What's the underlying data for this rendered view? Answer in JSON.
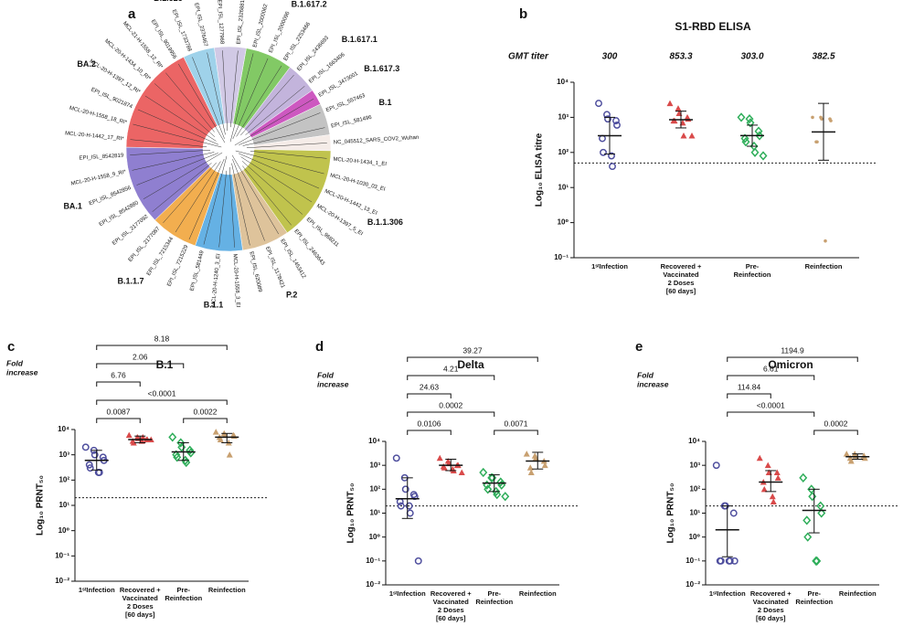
{
  "chart_data": [
    {
      "type": "tree",
      "panel": "a",
      "clades": [
        {
          "name": "B.1.617.2",
          "color": "#6cc04a",
          "leaves": [
            "EPI_ISL_2000062",
            "EPI_ISL_2000096",
            "EPI_ISL_2253466"
          ]
        },
        {
          "name": "B.1.617.1",
          "color": "#b9a7d6",
          "leaves": [
            "EPI_ISL_2436693",
            "EPI_ISL_1663406"
          ]
        },
        {
          "name": "B.1.617.3",
          "color": "#c43bb5",
          "leaves": [
            "EPI_ISL_3473001"
          ]
        },
        {
          "name": "B.1",
          "color": "#b8b8b8",
          "leaves": [
            "EPI_ISL_557463",
            "EPI_ISL_581496"
          ]
        },
        {
          "color": "#f3e9e4",
          "label_color": "#e8603c",
          "leaves": [
            "NC_045512_SARS_COV2_Wuhan"
          ]
        },
        {
          "name": "B.1.1.306",
          "color": "#b5b82e",
          "label_color": "#2a2f7a",
          "leaves": [
            "MCL-20-H-1434_1_EI",
            "MCL-20-H-1030_03_EI",
            "MCL-20-H-1442_13_EI",
            "MCL-20-H-1397_5_EI",
            "EPI_ISL_968211",
            "EPI_ISL_2463643"
          ]
        },
        {
          "name": "P.2",
          "color": "#d8b98a",
          "leaves": [
            "EPI_ISL_1453412",
            "EPI_ISL_1178421",
            "EPI_ISL_620089"
          ]
        },
        {
          "name": "B.1.1",
          "color": "#4aa3df",
          "leaves": [
            "MCL-20-H-1558_3_EI",
            "MCL-20-H-1240_3_EI",
            "EPI_ISL_581449"
          ]
        },
        {
          "name": "B.1.1.7",
          "color": "#f0a030",
          "leaves": [
            "EPI_ISL_7215229",
            "EPI_ISL_7215344",
            "EPI_ISL_2177087"
          ]
        },
        {
          "name": "BA.1",
          "color": "#7b68c8",
          "label_color": "#9b3a9b",
          "leaves": [
            "EPI_ISL_2177092",
            "EPI_ISL_8542880",
            "EPI_ISL_8542856",
            "MCL-20-H-1558_9_RI*",
            "EPI_ISL_8542819"
          ]
        },
        {
          "name": "BA.2",
          "color": "#e84a4a",
          "label_color": "#9b3a9b",
          "leaves": [
            "MCL-20-H-1442_17_RI*",
            "MCL-20-H-1558_18_RI*",
            "EPI_ISL_9021874",
            "MCL-20-H-1397_12_RI*",
            "MCL-20-H-1434_10_RI*",
            "MCL-21-H-1558_12_RI*",
            "EPI_ISL_9019956"
          ]
        },
        {
          "name": "B.1.525",
          "color": "#8ecae6",
          "leaves": [
            "EPI_ISL_1733788",
            "EPI_ISL_2376467"
          ]
        },
        {
          "name": "B.1.351",
          "color": "#c9c0e0",
          "leaves": [
            "EPI_ISL_1277968",
            "EPI_ISL_2326881"
          ]
        }
      ]
    },
    {
      "type": "dot",
      "panel": "b",
      "title": "S1-RBD ELISA",
      "ylabel": "Log₁₀ ELISA titre",
      "log_y": true,
      "categories": [
        [
          "1ˢᵗInfection"
        ],
        [
          "Recovered +",
          "Vaccinated",
          "2 Doses",
          "[60 days]"
        ],
        [
          "Pre-",
          "Reinfection"
        ],
        [
          "Reinfection"
        ]
      ],
      "colors": [
        "#4f4f9e",
        "#d94a4a",
        "#2fae5a",
        "#c8a070"
      ],
      "markers": [
        "open-circle",
        "triangle",
        "open-diamond",
        "dot"
      ],
      "points": [
        [
          2500,
          1200,
          900,
          800,
          600,
          250,
          100,
          80,
          40
        ],
        [
          2500,
          1800,
          1300,
          1000,
          900,
          800,
          800,
          700,
          300,
          300
        ],
        [
          1000,
          900,
          700,
          400,
          300,
          250,
          200,
          150,
          100,
          80
        ],
        [
          1000,
          1000,
          900,
          900,
          800,
          200,
          200,
          0.3
        ]
      ],
      "gmt_titer": {
        "label": "GMT titer",
        "values": [
          300,
          853.3,
          303,
          382.5
        ],
        "value_labels": [
          "300",
          "853.3",
          "303.0",
          "382.5"
        ]
      },
      "errors": [
        [
          90,
          1000
        ],
        [
          500,
          1500
        ],
        [
          150,
          600
        ],
        [
          60,
          2500
        ]
      ],
      "threshold": 50,
      "ylim": [
        0.1,
        10000
      ],
      "yticks": [
        {
          "value": 0.1,
          "label": "10⁻¹"
        },
        {
          "value": 1,
          "label": "10⁰"
        },
        {
          "value": 10,
          "label": "10¹"
        },
        {
          "value": 100,
          "label": "10²"
        },
        {
          "value": 1000,
          "label": "10³"
        },
        {
          "value": 10000,
          "label": "10⁴"
        }
      ]
    },
    {
      "type": "dot",
      "panel": "c",
      "title": "B.1",
      "ylabel": "Log₁₀ PRNT₅₀",
      "log_y": true,
      "fold_label": [
        "Fold",
        "increase"
      ],
      "categories": [
        [
          "1ˢᵗInfection"
        ],
        [
          "Recovered +",
          "Vaccinated",
          "2 Doses",
          "[60 days]"
        ],
        [
          "Pre-",
          "Reinfection"
        ],
        [
          "Reinfection"
        ]
      ],
      "colors": [
        "#4f4f9e",
        "#d94a4a",
        "#2fae5a",
        "#c8a070"
      ],
      "markers": [
        "open-circle",
        "triangle",
        "open-diamond",
        "triangle"
      ],
      "points": [
        [
          2000,
          1500,
          1000,
          800,
          600,
          400,
          300,
          200,
          200
        ],
        [
          6000,
          5000,
          4500,
          4000,
          4000,
          3500,
          3000,
          3500,
          5000,
          4000
        ],
        [
          5000,
          3000,
          2000,
          1500,
          1200,
          1000,
          800,
          600,
          500
        ],
        [
          8000,
          7000,
          6000,
          6000,
          5500,
          5000,
          4000,
          3000,
          1000
        ]
      ],
      "means": [
        600,
        4000,
        1300,
        5000
      ],
      "errors": [
        [
          250,
          1500
        ],
        [
          3000,
          5500
        ],
        [
          600,
          3000
        ],
        [
          3000,
          7000
        ]
      ],
      "threshold": 20,
      "pvalues": [
        [
          {
            "span": [
              0,
              1
            ],
            "label": "0.0087"
          },
          {
            "span": [
              2,
              3
            ],
            "label": "0.0022"
          }
        ],
        [
          {
            "span": [
              0,
              3
            ],
            "label": "<0.0001"
          }
        ]
      ],
      "folds": [
        [
          {
            "span": [
              0,
              1
            ],
            "label": "6.76"
          }
        ],
        [
          {
            "span": [
              0,
              2
            ],
            "label": "2.06"
          }
        ],
        [
          {
            "span": [
              0,
              3
            ],
            "label": "8.18"
          }
        ]
      ],
      "ylim": [
        0.01,
        10000
      ],
      "yticks": [
        {
          "value": 0.01,
          "label": "10⁻²"
        },
        {
          "value": 0.1,
          "label": "10⁻¹"
        },
        {
          "value": 1,
          "label": "10⁰"
        },
        {
          "value": 10,
          "label": "10¹"
        },
        {
          "value": 100,
          "label": "10²"
        },
        {
          "value": 1000,
          "label": "10³"
        },
        {
          "value": 10000,
          "label": "10⁴"
        }
      ]
    },
    {
      "type": "dot",
      "panel": "d",
      "title": "Delta",
      "ylabel": "Log₁₀ PRNT₅₀",
      "log_y": true,
      "fold_label": [
        "Fold",
        "increase"
      ],
      "categories": [
        [
          "1ˢᵗInfection"
        ],
        [
          "Recovered +",
          "Vaccinated",
          "2 Doses",
          "[60 days]"
        ],
        [
          "Pre-",
          "Reinfection"
        ],
        [
          "Reinfection"
        ]
      ],
      "colors": [
        "#4f4f9e",
        "#d94a4a",
        "#2fae5a",
        "#c8a070"
      ],
      "markers": [
        "open-circle",
        "triangle",
        "open-diamond",
        "triangle"
      ],
      "points": [
        [
          2000,
          300,
          100,
          60,
          50,
          30,
          20,
          20,
          10,
          0.1
        ],
        [
          2000,
          1500,
          1200,
          1000,
          1000,
          900,
          800,
          700,
          600,
          500
        ],
        [
          500,
          300,
          300,
          200,
          150,
          150,
          100,
          80,
          60,
          50
        ],
        [
          3000,
          2500,
          2000,
          1500,
          1000,
          800,
          500
        ]
      ],
      "means": [
        40,
        1000,
        180,
        1500
      ],
      "errors": [
        [
          6,
          300
        ],
        [
          600,
          1800
        ],
        [
          80,
          400
        ],
        [
          700,
          3500
        ]
      ],
      "threshold": 20,
      "pvalues": [
        [
          {
            "span": [
              0,
              1
            ],
            "label": "0.0106"
          },
          {
            "span": [
              2,
              3
            ],
            "label": "0.0071"
          }
        ],
        [
          {
            "span": [
              0,
              2
            ],
            "label": "0.0002"
          }
        ]
      ],
      "folds": [
        [
          {
            "span": [
              0,
              1
            ],
            "label": "24.63"
          }
        ],
        [
          {
            "span": [
              0,
              2
            ],
            "label": "4.21"
          }
        ],
        [
          {
            "span": [
              0,
              3
            ],
            "label": "39.27"
          }
        ]
      ],
      "ylim": [
        0.01,
        10000
      ],
      "yticks": [
        {
          "value": 0.01,
          "label": "10⁻²"
        },
        {
          "value": 0.1,
          "label": "10⁻¹"
        },
        {
          "value": 1,
          "label": "10⁰"
        },
        {
          "value": 10,
          "label": "10¹"
        },
        {
          "value": 100,
          "label": "10²"
        },
        {
          "value": 1000,
          "label": "10³"
        },
        {
          "value": 10000,
          "label": "10⁴"
        }
      ]
    },
    {
      "type": "dot",
      "panel": "e",
      "title": "Omicron",
      "ylabel": "Log₁₀ PRNT₅₀",
      "log_y": true,
      "fold_label": [
        "Fold",
        "increase"
      ],
      "categories": [
        [
          "1ˢᵗInfection"
        ],
        [
          "Recovered +",
          "Vaccinated",
          "2 Doses",
          "[60 days]"
        ],
        [
          "Pre-",
          "Reinfection"
        ],
        [
          "Reinfection"
        ]
      ],
      "colors": [
        "#4f4f9e",
        "#d94a4a",
        "#2fae5a",
        "#c8a070"
      ],
      "markers": [
        "open-circle",
        "triangle",
        "open-diamond",
        "triangle"
      ],
      "points": [
        [
          1000,
          20,
          20,
          10,
          0.1,
          0.1,
          0.1,
          0.1,
          0.1
        ],
        [
          2000,
          1000,
          500,
          500,
          300,
          200,
          100,
          50,
          30
        ],
        [
          300,
          100,
          50,
          20,
          10,
          5,
          1,
          0.1,
          0.1
        ],
        [
          3000,
          3000,
          2500,
          2500,
          2000,
          2000,
          1500
        ]
      ],
      "means": [
        2,
        200,
        13,
        2300
      ],
      "errors": [
        [
          0.15,
          20
        ],
        [
          80,
          600
        ],
        [
          1.5,
          100
        ],
        [
          1800,
          3000
        ]
      ],
      "threshold": 20,
      "pvalues": [
        [
          {
            "span": [
              2,
              3
            ],
            "label": "0.0002"
          }
        ],
        [
          {
            "span": [
              0,
              2
            ],
            "label": "<0.0001"
          }
        ]
      ],
      "folds": [
        [
          {
            "span": [
              0,
              1
            ],
            "label": "114.84"
          }
        ],
        [
          {
            "span": [
              0,
              2
            ],
            "label": "6.61"
          }
        ],
        [
          {
            "span": [
              0,
              3
            ],
            "label": "1194.9"
          }
        ]
      ],
      "ylim": [
        0.01,
        10000
      ],
      "yticks": [
        {
          "value": 0.01,
          "label": "10⁻²"
        },
        {
          "value": 0.1,
          "label": "10⁻¹"
        },
        {
          "value": 1,
          "label": "10⁰"
        },
        {
          "value": 10,
          "label": "10¹"
        },
        {
          "value": 100,
          "label": "10²"
        },
        {
          "value": 1000,
          "label": "10³"
        },
        {
          "value": 10000,
          "label": "10⁴"
        }
      ]
    }
  ]
}
